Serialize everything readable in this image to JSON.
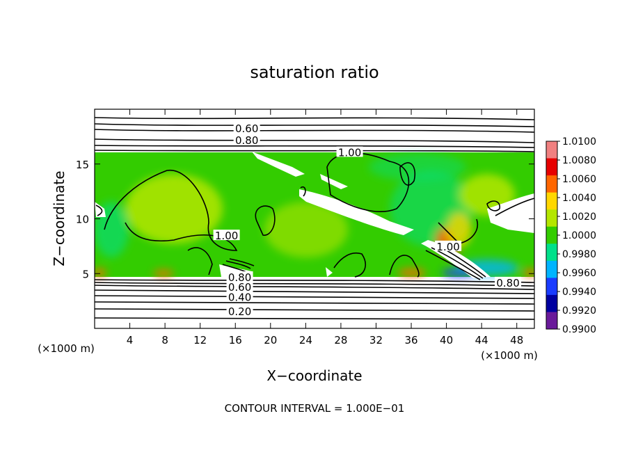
{
  "chart_data": {
    "type": "heatmap",
    "title": "saturation ratio",
    "xlabel": "X−coordinate",
    "ylabel": "Z−coordinate",
    "x_unit_left": "(×1000 m)",
    "x_unit_right": "(×1000 m)",
    "footer": "CONTOUR INTERVAL = 1.000E−01",
    "xlim": [
      0,
      50
    ],
    "ylim": [
      0,
      20
    ],
    "xticks": [
      4,
      8,
      12,
      16,
      20,
      24,
      28,
      32,
      36,
      40,
      44,
      48
    ],
    "yticks": [
      5,
      10,
      15
    ],
    "colorbar": {
      "levels": [
        "1.0100",
        "1.0080",
        "1.0060",
        "1.0040",
        "1.0020",
        "1.0000",
        "0.9980",
        "0.9960",
        "0.9940",
        "0.9920",
        "0.9900"
      ],
      "colors": [
        "#f08080",
        "#e60000",
        "#ff6600",
        "#ffd700",
        "#b4e600",
        "#33cc00",
        "#00e08a",
        "#00b4ff",
        "#1a3cff",
        "#0000a0",
        "#6a1a9a"
      ]
    },
    "contour_labels": [
      {
        "text": "0.60",
        "x": 17.3,
        "z": 18.3
      },
      {
        "text": "0.80",
        "x": 17.3,
        "z": 17.2
      },
      {
        "text": "1.00",
        "x": 29.0,
        "z": 16.1
      },
      {
        "text": "1.00",
        "x": 15.0,
        "z": 8.5
      },
      {
        "text": "1.00",
        "x": 40.2,
        "z": 7.5
      },
      {
        "text": "0.80",
        "x": 16.5,
        "z": 4.7
      },
      {
        "text": "0.60",
        "x": 16.5,
        "z": 3.8
      },
      {
        "text": "0.40",
        "x": 16.5,
        "z": 2.9
      },
      {
        "text": "0.20",
        "x": 16.5,
        "z": 1.6
      },
      {
        "text": "0.80",
        "x": 47.0,
        "z": 4.2
      }
    ]
  }
}
